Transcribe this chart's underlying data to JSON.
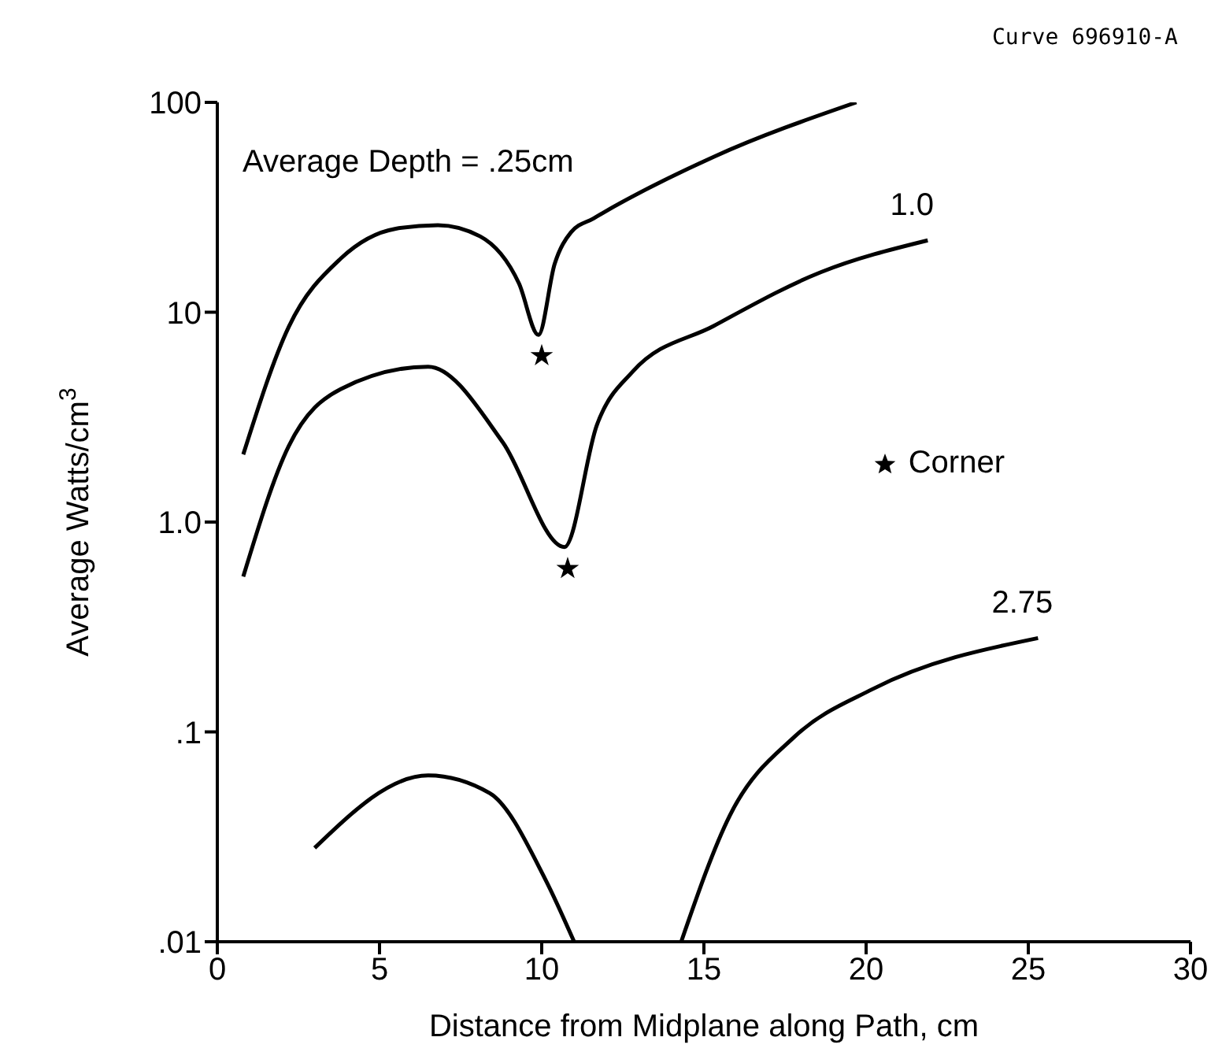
{
  "chart_data": {
    "type": "line",
    "xlabel": "Distance from Midplane along Path,  cm",
    "ylabel": "Average Watts/cm$^{3}$",
    "annotations": [
      "Curve 696910-A",
      "Average Depth = .25cm"
    ],
    "log": "y",
    "xlim": [
      0,
      30
    ],
    "xticks": [
      0,
      5,
      10,
      15,
      20,
      25,
      30
    ],
    "ylim": [
      0.01,
      100
    ],
    "yticks": [
      {
        "value": 100,
        "label": "100"
      },
      {
        "value": 10,
        "label": "10"
      },
      {
        "value": 1,
        "label": "1.0"
      },
      {
        "value": 0.1,
        "label": ".1"
      },
      {
        "value": 0.01,
        "label": ".01"
      }
    ],
    "legend": "right",
    "line_style": "solid",
    "series": [
      {
        "color": "#000000",
        "x": [
          0.8,
          2.2,
          3.8,
          5.5,
          6.8,
          8.1,
          9.3,
          9.9,
          10.4,
          10.9,
          11.6,
          15.3,
          19.7
        ],
        "values": [
          2.1,
          8.5,
          18,
          25,
          26,
          23,
          13.7,
          7.8,
          17,
          24,
          28,
          55,
          100
        ]
      },
      {
        "name": "1.0",
        "color": "#000000",
        "x": [
          0.8,
          2.2,
          3.8,
          6.5,
          8.8,
          10.7,
          11.7,
          12.8,
          15.3,
          18.6,
          21.9
        ],
        "values": [
          0.55,
          2.3,
          4.3,
          5.5,
          2.4,
          0.76,
          2.9,
          5.2,
          8.6,
          15.5,
          22
        ]
      },
      {
        "name": "2.75",
        "color": "#000000",
        "x": [
          3.0,
          6.5,
          8.4,
          10.1,
          11.0,
          12.5,
          14.3,
          15.8,
          17.8,
          20.2,
          25.3
        ],
        "values": [
          0.028,
          0.062,
          0.051,
          0.02,
          0.01,
          null,
          0.01,
          0.04,
          0.095,
          0.16,
          0.28
        ]
      },
      {
        "name": "Corner",
        "type": "scatter",
        "marker": "star",
        "color": "#000000",
        "x": [
          10.0,
          10.8
        ],
        "values": [
          6.2,
          0.6
        ]
      }
    ]
  }
}
